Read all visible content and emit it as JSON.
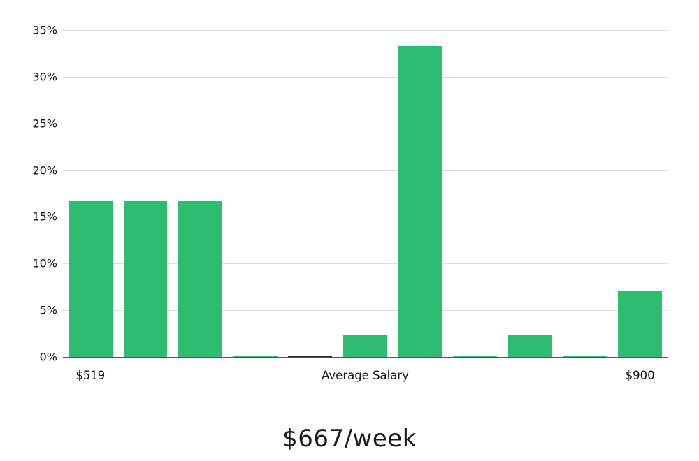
{
  "chart_data": {
    "type": "bar",
    "title": "$667/week",
    "categories": [
      "$519",
      "",
      "",
      "",
      "",
      "Average Salary",
      "",
      "",
      "",
      "",
      "$900"
    ],
    "values": [
      16.7,
      16.7,
      16.7,
      0.1,
      0.15,
      2.4,
      33.3,
      0.1,
      2.4,
      0.1,
      7.1
    ],
    "x_axis_labels": [
      {
        "label": "$519",
        "slot": 0
      },
      {
        "label": "Average Salary",
        "slot": 5
      },
      {
        "label": "$900",
        "slot": 10
      }
    ],
    "yticks": [
      "0%",
      "5%",
      "10%",
      "15%",
      "20%",
      "25%",
      "30%",
      "35%"
    ],
    "ylim": [
      0,
      35
    ],
    "grid": "horizontal",
    "legend": "none",
    "bar_color": "#2ebd70",
    "marker_bar_index": 4,
    "marker_color": "#222222",
    "gridline_color": "#dddddd",
    "zero_line_color": "#555555",
    "caption": "$667/week"
  }
}
